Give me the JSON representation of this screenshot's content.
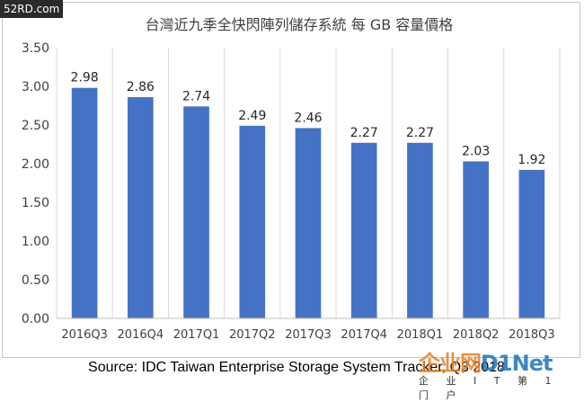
{
  "watermark_corner": "52RD.com",
  "source": "Source: IDC Taiwan Enterprise Storage System Tracker, Q3 2018",
  "watermark_logo": {
    "text_a": "企业网",
    "text_b": "D1Net",
    "tagline": "企 业 I T 第 1 门 户"
  },
  "chart_data": {
    "type": "bar",
    "title": "台灣近九季全快閃陣列儲存系統 每 GB 容量價格",
    "categories": [
      "2016Q3",
      "2016Q4",
      "2017Q1",
      "2017Q2",
      "2017Q3",
      "2017Q4",
      "2018Q1",
      "2018Q2",
      "2018Q3"
    ],
    "values": [
      2.98,
      2.86,
      2.74,
      2.49,
      2.46,
      2.27,
      2.27,
      2.03,
      1.92
    ],
    "value_labels": [
      "2.98",
      "2.86",
      "2.74",
      "2.49",
      "2.46",
      "2.27",
      "2.27",
      "2.03",
      "1.92"
    ],
    "ylim": [
      0,
      3.5
    ],
    "yticks": [
      "0.00",
      "0.50",
      "1.00",
      "1.50",
      "2.00",
      "2.50",
      "3.00",
      "3.50"
    ],
    "xlabel": "",
    "ylabel": "",
    "grid": "vertical",
    "legend": "none",
    "bar_color": "#4472c4",
    "grid_color": "#d9d9d9"
  }
}
